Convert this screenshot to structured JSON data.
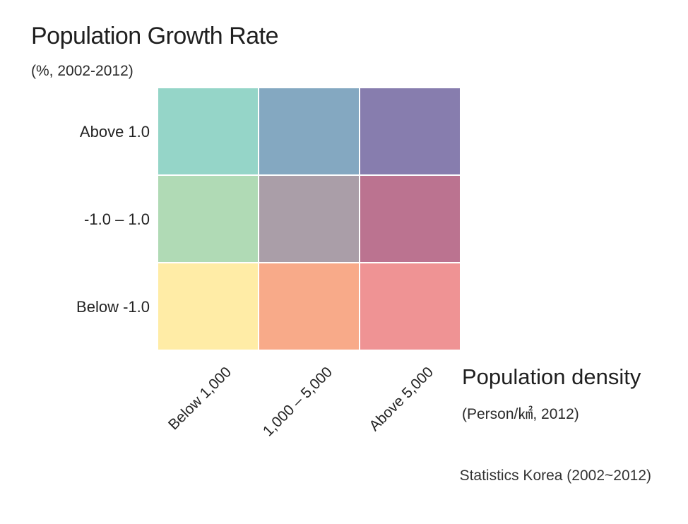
{
  "chart_data": {
    "type": "heatmap",
    "title": "Population Growth Rate",
    "subtitle": "(%, 2002-2012)",
    "xlabel": "Population density",
    "xlabel_sub": "(Person/㎢, 2012)",
    "x_categories": [
      "Below 1,000",
      "1,000 – 5,000",
      "Above 5,000"
    ],
    "y_categories": [
      "Above 1.0",
      "-1.0 – 1.0",
      "Below -1.0"
    ],
    "cells": [
      [
        "#95d5c8",
        "#84a8c1",
        "#877dae"
      ],
      [
        "#b0dab5",
        "#aa9ea8",
        "#bb7390"
      ],
      [
        "#ffeca6",
        "#f8aa89",
        "#ef9394"
      ]
    ],
    "source": "Statistics Korea (2002~2012)"
  }
}
